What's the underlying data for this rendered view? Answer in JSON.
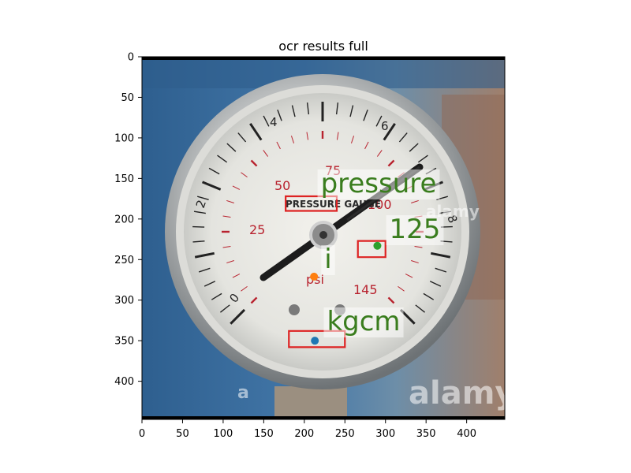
{
  "chart_data": {
    "type": "image",
    "title": "ocr results full",
    "xlabel": "",
    "ylabel": "",
    "xlim": [
      0,
      447
    ],
    "ylim": [
      447,
      0
    ],
    "xticks": [
      0,
      50,
      100,
      150,
      200,
      250,
      300,
      350,
      400
    ],
    "yticks": [
      0,
      50,
      100,
      150,
      200,
      250,
      300,
      350,
      400
    ],
    "image": {
      "subject": "pressure gauge photo",
      "gauge_outer_scale_labels": [
        "0",
        "2",
        "4",
        "6",
        "8"
      ],
      "gauge_inner_scale_labels": [
        "25",
        "50",
        "75",
        "100",
        "125",
        "145"
      ],
      "gauge_printed_text": [
        "PRESSURE GAUGE",
        "psi",
        "kg/cm²"
      ],
      "watermark_text": "alamy",
      "watermark_small": "a"
    },
    "detections": [
      {
        "label": "pressure",
        "box": [
          [
            177,
            172
          ],
          [
            240,
            172
          ],
          [
            240,
            190
          ],
          [
            177,
            190
          ]
        ],
        "center": [
          209,
          181
        ]
      },
      {
        "label": "125",
        "box": [
          [
            266,
            227
          ],
          [
            300,
            227
          ],
          [
            300,
            247
          ],
          [
            266,
            247
          ]
        ],
        "center": [
          290,
          233
        ]
      },
      {
        "label": "i",
        "box": [],
        "center": [
          212,
          271
        ]
      },
      {
        "label": "kgcm",
        "box": [
          [
            181,
            338
          ],
          [
            250,
            338
          ],
          [
            250,
            358
          ],
          [
            181,
            358
          ]
        ],
        "center": [
          213,
          350
        ]
      }
    ],
    "colors": {
      "box": "#dd2222",
      "text": "#3a7d1e",
      "label_bg": "#ffffff",
      "marker_1": "#1f77b4",
      "marker_2": "#ff7f0e",
      "marker_3": "#2ca02c"
    }
  }
}
